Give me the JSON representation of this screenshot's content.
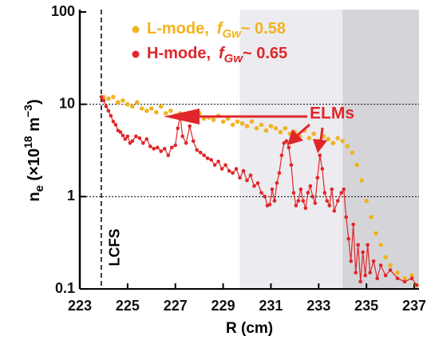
{
  "chart_data": {
    "type": "scatter",
    "xlabel": "R (cm)",
    "ylabel": {
      "parts": [
        "n",
        "e",
        " (×10",
        "18",
        " m",
        "−3",
        ")"
      ]
    },
    "xlim": [
      223,
      237.2
    ],
    "ylim": [
      0.1,
      100
    ],
    "ylog": true,
    "xticks": [
      223,
      225,
      227,
      229,
      231,
      233,
      235,
      237
    ],
    "yticks": [
      100,
      10,
      1,
      0.1
    ],
    "hlines": [
      10,
      1
    ],
    "shaded_regions": [
      {
        "xlim": [
          229.7,
          234.0
        ],
        "color": "#ecebef"
      },
      {
        "xlim": [
          234.0,
          237.2
        ],
        "color": "#d5d5d9"
      }
    ],
    "lcfs": {
      "label": "LCFS",
      "x": 223.9
    },
    "annotation": "ELMs",
    "annotation_color": "#e0262a",
    "series": [
      {
        "name": "L-mode,",
        "color": "#f0b323",
        "legend_color": "#f3b21c",
        "line": false,
        "legend_suffix": {
          "symbol": "f",
          "subscript": "Gw",
          "text": "~ 0.58"
        },
        "x": [
          224.0,
          224.2,
          224.4,
          224.6,
          224.8,
          225.0,
          225.2,
          225.4,
          225.6,
          225.8,
          226.0,
          226.2,
          226.4,
          226.6,
          226.8,
          227.0,
          227.2,
          227.4,
          227.6,
          227.8,
          228.0,
          228.2,
          228.4,
          228.6,
          228.8,
          229.0,
          229.2,
          229.4,
          229.6,
          229.8,
          230.0,
          230.2,
          230.4,
          230.6,
          230.8,
          231.0,
          231.2,
          231.4,
          231.6,
          231.8,
          232.0,
          232.2,
          232.4,
          232.6,
          232.8,
          233.0,
          233.2,
          233.4,
          233.6,
          233.8,
          234.0,
          234.2,
          234.4,
          234.6,
          234.8,
          235.0,
          235.2,
          235.4,
          235.6,
          235.8,
          236.0,
          236.3,
          236.6,
          236.9,
          237.1
        ],
        "values": [
          12,
          11.5,
          12,
          10.5,
          11,
          10,
          9.5,
          10.5,
          9,
          8.5,
          9,
          8.2,
          9.5,
          8,
          8.5,
          7.5,
          8,
          7.8,
          7,
          7.5,
          8,
          7,
          7.2,
          6.8,
          7.5,
          6.5,
          7,
          6,
          6.5,
          6.2,
          5.8,
          6.5,
          5.5,
          6,
          5.2,
          5.8,
          5.5,
          5,
          5.5,
          4.8,
          5,
          4.5,
          5.2,
          4.3,
          4.8,
          4,
          4.5,
          4.2,
          3.8,
          4.3,
          4,
          3.5,
          3,
          2.2,
          1.5,
          0.9,
          0.6,
          0.4,
          0.3,
          0.22,
          0.18,
          0.15,
          0.13,
          0.14,
          0.11
        ]
      },
      {
        "name": "H-mode,",
        "color": "#e0262a",
        "legend_color": "#e0262a",
        "line": true,
        "legend_suffix": {
          "symbol": "f",
          "subscript": "Gw",
          "text": "~ 0.65"
        },
        "x": [
          223.9,
          224.0,
          224.1,
          224.2,
          224.3,
          224.4,
          224.5,
          224.6,
          224.7,
          224.8,
          224.9,
          225.0,
          225.1,
          225.2,
          225.35,
          225.5,
          225.65,
          225.8,
          225.95,
          226.1,
          226.25,
          226.4,
          226.55,
          226.7,
          226.85,
          227.0,
          227.1,
          227.2,
          227.3,
          227.45,
          227.6,
          227.75,
          227.9,
          228.05,
          228.2,
          228.35,
          228.5,
          228.65,
          228.8,
          228.95,
          229.1,
          229.25,
          229.4,
          229.55,
          229.7,
          229.85,
          230.0,
          230.15,
          230.3,
          230.45,
          230.6,
          230.75,
          230.85,
          230.95,
          231.05,
          231.15,
          231.25,
          231.35,
          231.45,
          231.55,
          231.65,
          231.75,
          231.85,
          231.95,
          232.05,
          232.15,
          232.25,
          232.35,
          232.45,
          232.55,
          232.65,
          232.75,
          232.85,
          232.95,
          233.05,
          233.15,
          233.25,
          233.35,
          233.45,
          233.55,
          233.65,
          233.8,
          233.95,
          234.05,
          234.15,
          234.25,
          234.35,
          234.45,
          234.55,
          234.65,
          234.75,
          234.85,
          234.95,
          235.05,
          235.15,
          235.3,
          235.45,
          235.6,
          235.8,
          236.0,
          236.3,
          236.6,
          236.9,
          237.1
        ],
        "values": [
          12,
          11,
          9.5,
          8.5,
          7.5,
          6.5,
          6,
          5.2,
          5,
          4.6,
          4.2,
          4.5,
          3.8,
          4,
          4.5,
          4.3,
          3.8,
          4.2,
          3.5,
          3.3,
          3.4,
          3.1,
          3.3,
          2.8,
          3.4,
          3.6,
          5.5,
          7.5,
          4.5,
          3.8,
          5.8,
          4,
          3.2,
          3,
          2.8,
          2.6,
          2.5,
          2.2,
          2.4,
          2,
          2.2,
          1.9,
          1.8,
          2,
          1.6,
          1.9,
          1.5,
          1.7,
          1.3,
          1.4,
          1.1,
          1,
          0.8,
          0.82,
          1.2,
          0.9,
          1.4,
          1.8,
          2.8,
          3.8,
          4,
          3.4,
          2.2,
          1.1,
          0.8,
          0.9,
          1.2,
          0.9,
          0.75,
          1.1,
          1.3,
          1,
          0.85,
          1.6,
          2.8,
          2,
          1.1,
          0.9,
          0.8,
          1.2,
          0.7,
          0.9,
          1.1,
          1.2,
          0.6,
          0.35,
          0.2,
          0.5,
          0.15,
          0.3,
          0.12,
          0.25,
          0.14,
          0.3,
          0.15,
          0.2,
          0.13,
          0.18,
          0.14,
          0.16,
          0.13,
          0.12,
          0.13,
          0.11
        ]
      }
    ]
  }
}
